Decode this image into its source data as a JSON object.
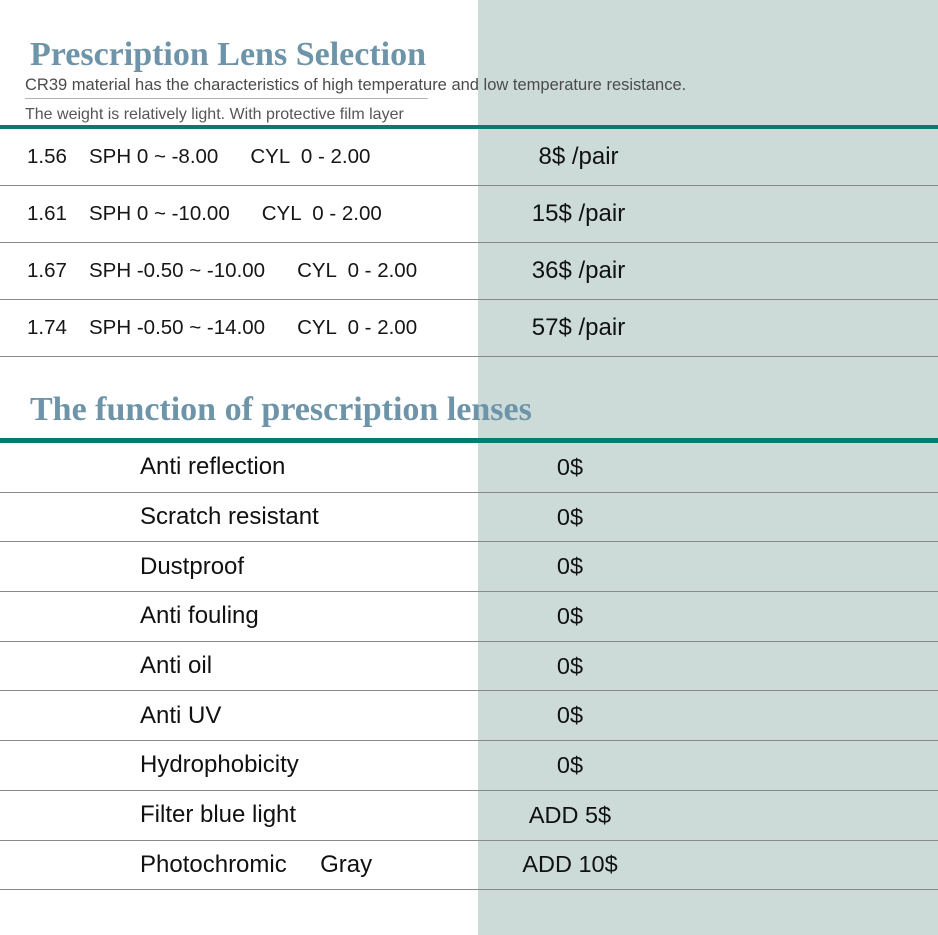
{
  "page": {
    "title": "Prescription Lens Selection",
    "subtitle_line1": "CR39 material has the characteristics of high temperature and low temperature resistance.",
    "subtitle_line2": "The weight is relatively light. With protective film layer"
  },
  "lens_table": {
    "rows": [
      {
        "index": "1.56",
        "sph": "SPH 0 ~ -8.00",
        "cyl": "CYL  0 - 2.00",
        "price": "8$ /pair"
      },
      {
        "index": "1.61",
        "sph": "SPH 0 ~ -10.00",
        "cyl": "CYL  0 - 2.00",
        "price": "15$ /pair"
      },
      {
        "index": "1.67",
        "sph": "SPH -0.50 ~ -10.00",
        "cyl": "CYL  0 - 2.00",
        "price": "36$ /pair"
      },
      {
        "index": "1.74",
        "sph": "SPH -0.50 ~ -14.00",
        "cyl": "CYL  0 - 2.00",
        "price": "57$ /pair"
      }
    ]
  },
  "function_section": {
    "title": "The function of prescription lenses",
    "rows": [
      {
        "label": "Anti reflection",
        "price": "0$"
      },
      {
        "label": "Scratch resistant",
        "price": "0$"
      },
      {
        "label": "Dustproof",
        "price": "0$"
      },
      {
        "label": "Anti fouling",
        "price": "0$"
      },
      {
        "label": "Anti oil",
        "price": "0$"
      },
      {
        "label": "Anti UV",
        "price": "0$"
      },
      {
        "label": "Hydrophobicity",
        "price": "0$"
      },
      {
        "label": "Filter blue light",
        "price": "ADD 5$"
      },
      {
        "label": "Photochromic     Gray",
        "price": "ADD 10$"
      }
    ]
  },
  "colors": {
    "accent_teal": "#077a71",
    "panel_green": "#ccdbd7",
    "title_blue": "#6d94a8",
    "separator_gray": "#8a8a8a"
  }
}
